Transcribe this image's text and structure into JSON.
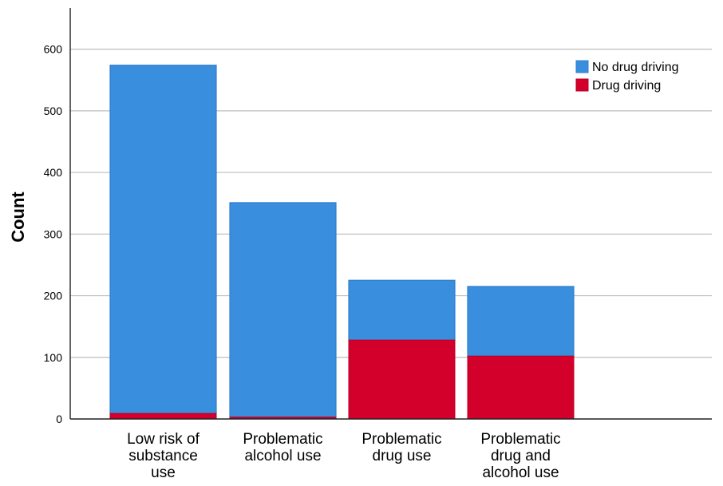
{
  "colors": {
    "no_drug_driving": "#3a8ede",
    "no_drug_driving_edge": "#2f7fd0",
    "drug_driving": "#d4002c",
    "drug_driving_edge": "#b80026",
    "gridline": "#bdbdbd",
    "axis": "#222222"
  },
  "chart_data": {
    "type": "bar",
    "stacked": true,
    "categories": [
      [
        "Low risk of",
        "substance",
        "use"
      ],
      [
        "Problematic",
        "alcohol  use"
      ],
      [
        "Problematic",
        "drug  use"
      ],
      [
        "Problematic",
        "drug and",
        "alcohol use"
      ]
    ],
    "series": [
      {
        "name": "Drug driving",
        "values": [
          9,
          3,
          128,
          102
        ]
      },
      {
        "name": "No drug driving",
        "values": [
          565,
          348,
          97,
          113
        ]
      }
    ],
    "xlabel": "",
    "ylabel": "Count",
    "ylim": [
      0,
      650
    ],
    "yticks": [
      0,
      100,
      200,
      300,
      400,
      500,
      600
    ],
    "grid": true,
    "legend": {
      "placement": "top-right",
      "entries": [
        "No drug driving",
        "Drug driving"
      ]
    }
  }
}
